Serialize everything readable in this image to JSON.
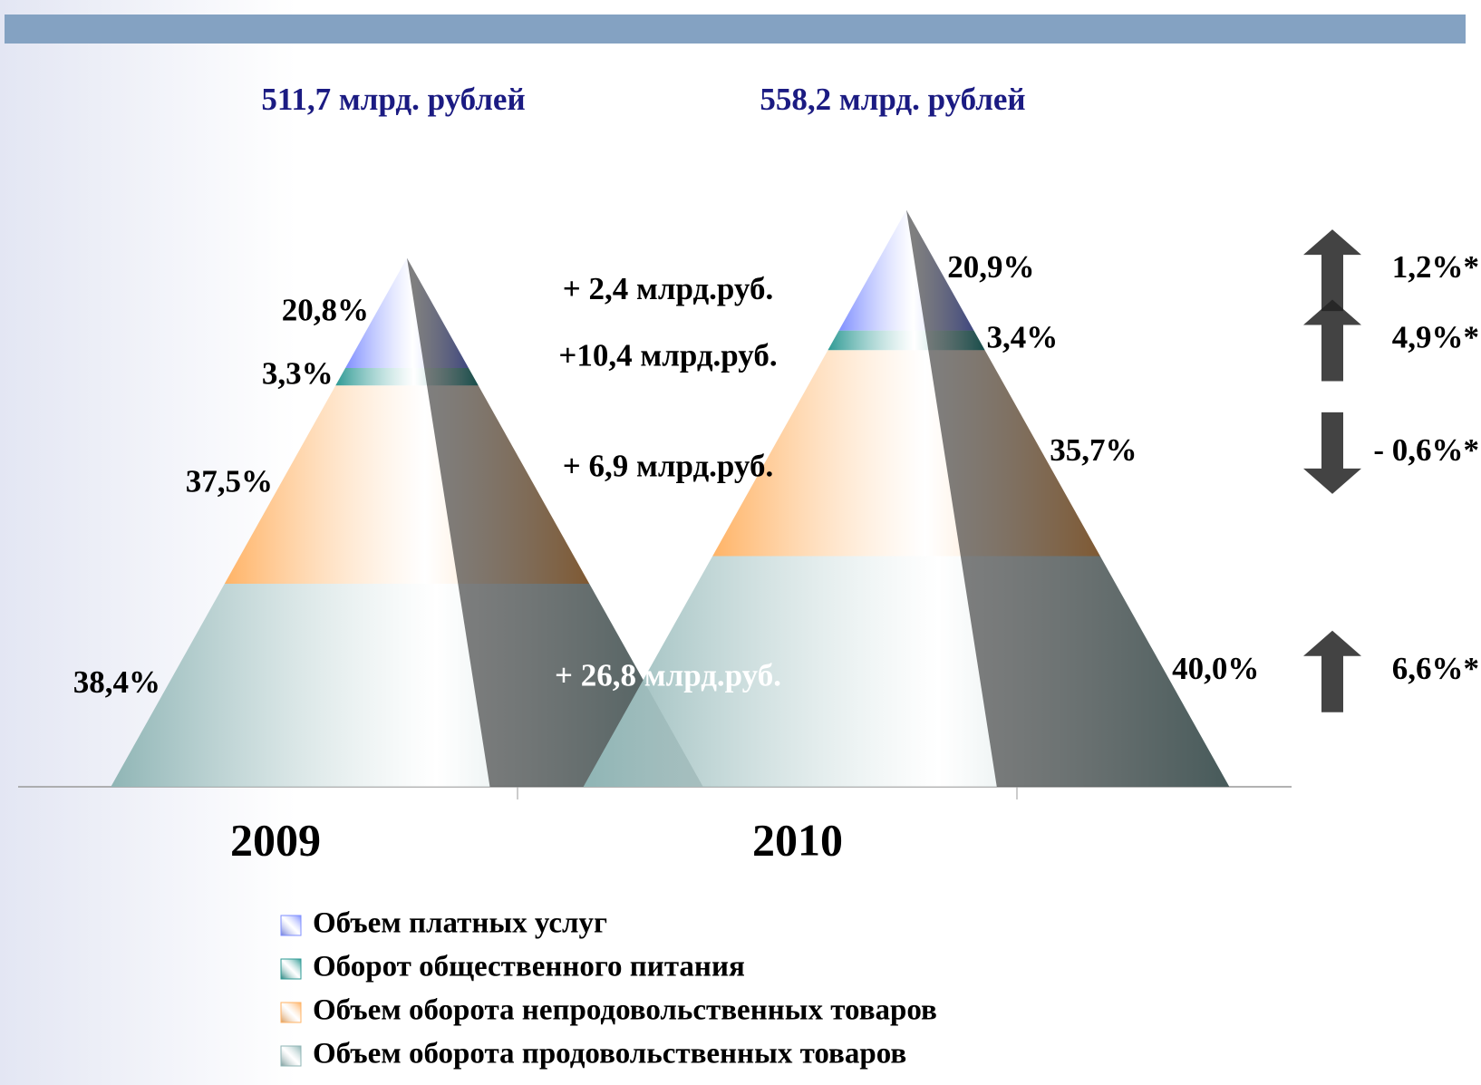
{
  "chart_data": {
    "type": "pyramid",
    "categories": [
      "2009",
      "2010"
    ],
    "totals": [
      {
        "value": 511.7,
        "label": "511,7 млрд. рублей"
      },
      {
        "value": 558.2,
        "label": "558,2 млрд. рублей"
      }
    ],
    "series": [
      {
        "name": "Объем оборота продовольственных товаров",
        "color": "#8fb5b5",
        "values": [
          38.4,
          40.0
        ],
        "value_labels": [
          "38,4%",
          "40,0%"
        ],
        "change": {
          "value": 26.8,
          "label": "+ 26,8 млрд.руб."
        },
        "growth": {
          "value": 6.6,
          "label": "6,6%*"
        }
      },
      {
        "name": "Объем оборота непродовольственных товаров",
        "color": "#ffb366",
        "values": [
          37.5,
          35.7
        ],
        "value_labels": [
          "37,5%",
          "35,7%"
        ],
        "change": {
          "value": 6.9,
          "label": "+ 6,9 млрд.руб."
        },
        "growth": {
          "value": -0.6,
          "label": "- 0,6%*"
        }
      },
      {
        "name": "Оборот общественного питания",
        "color": "#2e9a94",
        "values": [
          3.3,
          3.4
        ],
        "value_labels": [
          "3,3%",
          "3,4%"
        ],
        "change": {
          "value": 10.4,
          "label": "+10,4 млрд.руб."
        },
        "growth": {
          "value": 4.9,
          "label": "4,9%*"
        }
      },
      {
        "name": "Объем платных услуг",
        "color": "#7f8fff",
        "values": [
          20.8,
          20.9
        ],
        "value_labels": [
          "20,8%",
          "20,9%"
        ],
        "change": {
          "value": 2.4,
          "label": "+ 2,4 млрд.руб."
        },
        "growth": {
          "value": 1.2,
          "label": "1,2%*"
        }
      }
    ]
  }
}
